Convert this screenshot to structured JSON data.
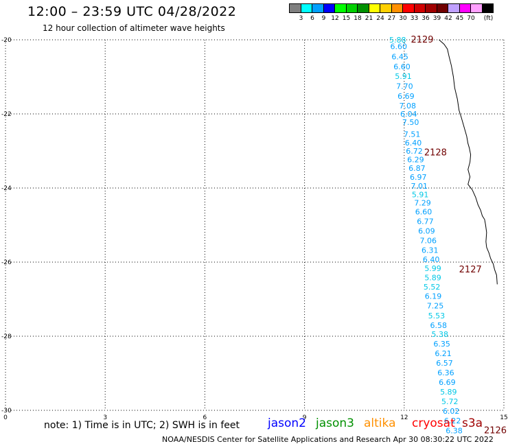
{
  "header": {
    "title": "12:00 – 23:59 UTC 04/28/2022",
    "subtitle": "12 hour collection of altimeter wave heights"
  },
  "scale": {
    "unit": "(ft)",
    "colors": [
      "#7f7f7f",
      "#00ffff",
      "#00a0ff",
      "#0000ff",
      "#00ff00",
      "#00d000",
      "#009000",
      "#ffff00",
      "#ffd000",
      "#ff9000",
      "#ff0000",
      "#d00000",
      "#a00000",
      "#700000",
      "#c0a0ff",
      "#ff00ff",
      "#ffa0ff",
      "#000000"
    ],
    "labels": [
      "3",
      "6",
      "9",
      "12",
      "15",
      "18",
      "21",
      "24",
      "27",
      "30",
      "33",
      "36",
      "39",
      "42",
      "45",
      "70"
    ]
  },
  "chart_data": {
    "type": "map",
    "xlim": [
      0,
      15
    ],
    "ylim": [
      -30,
      -20
    ],
    "x_ticks": [
      "0",
      "3",
      "6",
      "9",
      "12",
      "15"
    ],
    "y_ticks": [
      "-20",
      "-22",
      "-24",
      "-26",
      "-28",
      "-30"
    ],
    "observations": [
      {
        "x": 11.55,
        "y": -20.0,
        "value": "5.88",
        "color": "#00c8e6"
      },
      {
        "x": 11.58,
        "y": -20.18,
        "value": "6.60",
        "color": "#00a0ff"
      },
      {
        "x": 11.62,
        "y": -20.45,
        "value": "6.45",
        "color": "#00a0ff"
      },
      {
        "x": 11.68,
        "y": -20.72,
        "value": "6.60",
        "color": "#00a0ff"
      },
      {
        "x": 11.72,
        "y": -20.98,
        "value": "5.91",
        "color": "#00c8e6"
      },
      {
        "x": 11.76,
        "y": -21.25,
        "value": "7.70",
        "color": "#00a0ff"
      },
      {
        "x": 11.8,
        "y": -21.52,
        "value": "6.69",
        "color": "#00a0ff"
      },
      {
        "x": 11.85,
        "y": -21.78,
        "value": "7.08",
        "color": "#00a0ff"
      },
      {
        "x": 11.88,
        "y": -22.0,
        "value": "6.04",
        "color": "#00a0ff"
      },
      {
        "x": 11.94,
        "y": -22.22,
        "value": "7.50",
        "color": "#00a0ff"
      },
      {
        "x": 11.98,
        "y": -22.55,
        "value": "7.51",
        "color": "#00a0ff"
      },
      {
        "x": 12.02,
        "y": -22.78,
        "value": "6.40",
        "color": "#00a0ff"
      },
      {
        "x": 12.05,
        "y": -23.0,
        "value": "6.72",
        "color": "#00a0ff"
      },
      {
        "x": 12.09,
        "y": -23.23,
        "value": "6.29",
        "color": "#00a0ff"
      },
      {
        "x": 12.13,
        "y": -23.46,
        "value": "6.87",
        "color": "#00a0ff"
      },
      {
        "x": 12.17,
        "y": -23.7,
        "value": "6.97",
        "color": "#00a0ff"
      },
      {
        "x": 12.2,
        "y": -23.94,
        "value": "7.01",
        "color": "#00a0ff"
      },
      {
        "x": 12.23,
        "y": -24.18,
        "value": "5.91",
        "color": "#00c8e6"
      },
      {
        "x": 12.3,
        "y": -24.4,
        "value": "7.29",
        "color": "#00a0ff"
      },
      {
        "x": 12.33,
        "y": -24.64,
        "value": "6.60",
        "color": "#00a0ff"
      },
      {
        "x": 12.38,
        "y": -24.9,
        "value": "6.77",
        "color": "#00a0ff"
      },
      {
        "x": 12.42,
        "y": -25.16,
        "value": "6.09",
        "color": "#00a0ff"
      },
      {
        "x": 12.47,
        "y": -25.42,
        "value": "7.06",
        "color": "#00a0ff"
      },
      {
        "x": 12.52,
        "y": -25.68,
        "value": "6.31",
        "color": "#00a0ff"
      },
      {
        "x": 12.56,
        "y": -25.93,
        "value": "6.40",
        "color": "#00a0ff"
      },
      {
        "x": 12.61,
        "y": -26.17,
        "value": "5.99",
        "color": "#00c8e6"
      },
      {
        "x": 12.61,
        "y": -26.42,
        "value": "5.89",
        "color": "#00c8e6"
      },
      {
        "x": 12.58,
        "y": -26.67,
        "value": "5.52",
        "color": "#00c8e6"
      },
      {
        "x": 12.62,
        "y": -26.92,
        "value": "6.19",
        "color": "#00a0ff"
      },
      {
        "x": 12.68,
        "y": -27.18,
        "value": "7.25",
        "color": "#00a0ff"
      },
      {
        "x": 12.72,
        "y": -27.44,
        "value": "5.53",
        "color": "#00c8e6"
      },
      {
        "x": 12.78,
        "y": -27.7,
        "value": "6.58",
        "color": "#00a0ff"
      },
      {
        "x": 12.82,
        "y": -27.94,
        "value": "5.38",
        "color": "#00c8e6"
      },
      {
        "x": 12.88,
        "y": -28.2,
        "value": "6.35",
        "color": "#00a0ff"
      },
      {
        "x": 12.92,
        "y": -28.46,
        "value": "6.21",
        "color": "#00a0ff"
      },
      {
        "x": 12.96,
        "y": -28.72,
        "value": "6.57",
        "color": "#00a0ff"
      },
      {
        "x": 13.0,
        "y": -28.98,
        "value": "6.36",
        "color": "#00a0ff"
      },
      {
        "x": 13.04,
        "y": -29.24,
        "value": "6.69",
        "color": "#00a0ff"
      },
      {
        "x": 13.08,
        "y": -29.5,
        "value": "5.89",
        "color": "#00c8e6"
      },
      {
        "x": 13.12,
        "y": -29.76,
        "value": "5.72",
        "color": "#00c8e6"
      },
      {
        "x": 13.16,
        "y": -30.02,
        "value": "6.02",
        "color": "#00a0ff"
      },
      {
        "x": 13.2,
        "y": -30.28,
        "value": "6.22",
        "color": "#00a0ff"
      },
      {
        "x": 13.25,
        "y": -30.55,
        "value": "6.38",
        "color": "#00a0ff"
      }
    ],
    "times": [
      {
        "x": 12.2,
        "y": -20.0,
        "label": "2129"
      },
      {
        "x": 12.6,
        "y": -23.05,
        "label": "2128"
      },
      {
        "x": 13.65,
        "y": -26.2,
        "label": "2127"
      },
      {
        "x": 14.4,
        "y": -30.55,
        "label": "2126"
      }
    ],
    "coastline": [
      [
        13.05,
        -20.0
      ],
      [
        13.2,
        -20.12
      ],
      [
        13.3,
        -20.25
      ],
      [
        13.35,
        -20.45
      ],
      [
        13.42,
        -20.7
      ],
      [
        13.48,
        -21.0
      ],
      [
        13.52,
        -21.3
      ],
      [
        13.6,
        -21.6
      ],
      [
        13.65,
        -21.9
      ],
      [
        13.72,
        -22.1
      ],
      [
        13.8,
        -22.35
      ],
      [
        13.88,
        -22.6
      ],
      [
        13.92,
        -22.8
      ],
      [
        13.96,
        -22.92
      ],
      [
        14.0,
        -23.1
      ],
      [
        13.98,
        -23.3
      ],
      [
        13.92,
        -23.5
      ],
      [
        13.98,
        -23.7
      ],
      [
        13.92,
        -23.9
      ],
      [
        14.05,
        -24.05
      ],
      [
        14.15,
        -24.25
      ],
      [
        14.22,
        -24.45
      ],
      [
        14.3,
        -24.6
      ],
      [
        14.35,
        -24.75
      ],
      [
        14.42,
        -24.85
      ],
      [
        14.45,
        -25.0
      ],
      [
        14.48,
        -25.2
      ],
      [
        14.46,
        -25.45
      ],
      [
        14.48,
        -25.6
      ],
      [
        14.55,
        -25.75
      ],
      [
        14.6,
        -25.9
      ],
      [
        14.68,
        -26.05
      ],
      [
        14.72,
        -26.2
      ],
      [
        14.78,
        -26.35
      ],
      [
        14.8,
        -26.6
      ]
    ]
  },
  "legend": {
    "note": "note: 1) Time is in UTC; 2) SWH is in feet",
    "satellites": [
      {
        "name": "jason2",
        "color": "#0000ff"
      },
      {
        "name": "jason3",
        "color": "#009000"
      },
      {
        "name": "altika",
        "color": "#ff9000"
      },
      {
        "name": "cryosat",
        "color": "#ff0000"
      },
      {
        "name": "s3a",
        "color": "#a00000"
      }
    ]
  },
  "footer": "NOAA/NESDIS Center for Satellite Applications and Research    Apr 30 08:30:22 UTC 2022"
}
